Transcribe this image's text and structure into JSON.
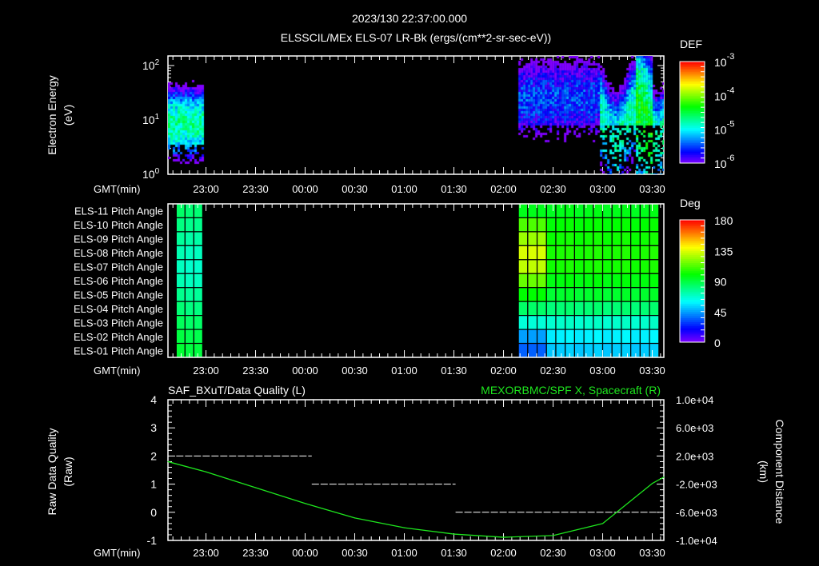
{
  "header": {
    "timestamp": "2023/130 22:37:00.000",
    "subtitle": "ELSSCIL/MEx ELS-07 LR-Bk  (ergs/(cm**2-sr-sec-eV))"
  },
  "time_axis": {
    "label": "GMT(min)",
    "start_min_after_2237": 0,
    "end_min_after_2237": 300,
    "ticks": [
      "23:00",
      "23:30",
      "00:00",
      "00:30",
      "01:00",
      "01:30",
      "02:00",
      "02:30",
      "03:00",
      "03:30"
    ]
  },
  "chart_data": [
    {
      "type": "heatmap",
      "name": "electron-energy-spectrogram",
      "ylabel_line1": "Electron Energy",
      "ylabel_line2": "(eV)",
      "yscale": "log",
      "ylim": [
        1,
        150
      ],
      "yticks": [
        {
          "base": "10",
          "exp": "2",
          "value": 100
        },
        {
          "base": "10",
          "exp": "1",
          "value": 10
        },
        {
          "base": "10",
          "exp": "0",
          "value": 1
        }
      ],
      "data_intervals": [
        [
          "22:37",
          "22:58"
        ],
        [
          "02:09",
          "03:37"
        ]
      ],
      "colorbar": {
        "title": "DEF",
        "scale": "log",
        "range": [
          1e-06,
          0.001
        ],
        "ticks": [
          {
            "base": "10",
            "exp": "-3"
          },
          {
            "base": "10",
            "exp": "-4"
          },
          {
            "base": "10",
            "exp": "-5"
          },
          {
            "base": "10",
            "exp": "-6"
          }
        ]
      }
    },
    {
      "type": "heatmap",
      "name": "pitch-angle",
      "rows": [
        "ELS-11 Pitch Angle",
        "ELS-10 Pitch Angle",
        "ELS-09 Pitch Angle",
        "ELS-08 Pitch Angle",
        "ELS-07 Pitch Angle",
        "ELS-06 Pitch Angle",
        "ELS-05 Pitch Angle",
        "ELS-04 Pitch Angle",
        "ELS-03 Pitch Angle",
        "ELS-02 Pitch Angle",
        "ELS-01 Pitch Angle"
      ],
      "blocks": [
        {
          "start": "22:42",
          "end": "22:58",
          "columns": 3,
          "values_by_row": [
            [
              84,
              82,
              82
            ],
            [
              80,
              78,
              78
            ],
            [
              76,
              74,
              74
            ],
            [
              72,
              70,
              70
            ],
            [
              70,
              68,
              68
            ],
            [
              72,
              70,
              70
            ],
            [
              78,
              76,
              76
            ],
            [
              82,
              80,
              80
            ],
            [
              86,
              84,
              84
            ],
            [
              90,
              88,
              88
            ],
            [
              92,
              90,
              90
            ]
          ]
        },
        {
          "start": "02:09",
          "end": "03:34",
          "columns": 15,
          "early_cols": 3,
          "early_values": [
            96,
            112,
            124,
            134,
            130,
            116,
            100,
            84,
            66,
            45,
            35
          ],
          "late_values": [
            96,
            100,
            102,
            104,
            103,
            98,
            93,
            82,
            68,
            58,
            52
          ]
        }
      ],
      "colorbar": {
        "title": "Deg",
        "range": [
          0,
          180
        ],
        "ticks": [
          "180",
          "135",
          "90",
          "45",
          "0"
        ]
      }
    },
    {
      "type": "line",
      "name": "quality-and-distance",
      "title_left": "SAF_BXuT/Data Quality (L)",
      "title_right": "MEXORBMC/SPF X, Spacecraft (R)",
      "ylabel_left_line1": "Raw Data Quality",
      "ylabel_left_line2": "(Raw)",
      "ylabel_right_line1": "Component Distance",
      "ylabel_right_line2": "(km)",
      "ylim_left": [
        -1,
        4
      ],
      "yticks_left": [
        "4",
        "3",
        "2",
        "1",
        "0",
        "-1"
      ],
      "ylim_right": [
        -10000,
        10000
      ],
      "yticks_right": [
        "1.0e+04",
        "6.0e+03",
        "2.0e+03",
        "-2.0e+03",
        "-6.0e+03",
        "-1.0e+04"
      ],
      "series": [
        {
          "name": "Data Quality",
          "axis": "left",
          "color": "#ffffff",
          "style": "dashed",
          "segments": [
            {
              "start": "22:42",
              "end": "00:04",
              "value": 2
            },
            {
              "start": "00:04",
              "end": "01:31",
              "value": 1
            },
            {
              "start": "01:31",
              "end": "03:34",
              "value": 0
            }
          ]
        },
        {
          "name": "MEXORBMC/SPF X",
          "axis": "right",
          "color": "#1ee61e",
          "x": [
            "22:37",
            "23:00",
            "23:30",
            "00:00",
            "00:30",
            "01:00",
            "01:30",
            "02:00",
            "02:30",
            "03:00",
            "03:30",
            "03:37"
          ],
          "values": [
            1200,
            -250,
            -2500,
            -4750,
            -6800,
            -8200,
            -9100,
            -9550,
            -9300,
            -7600,
            -1900,
            -1000
          ]
        }
      ]
    }
  ]
}
